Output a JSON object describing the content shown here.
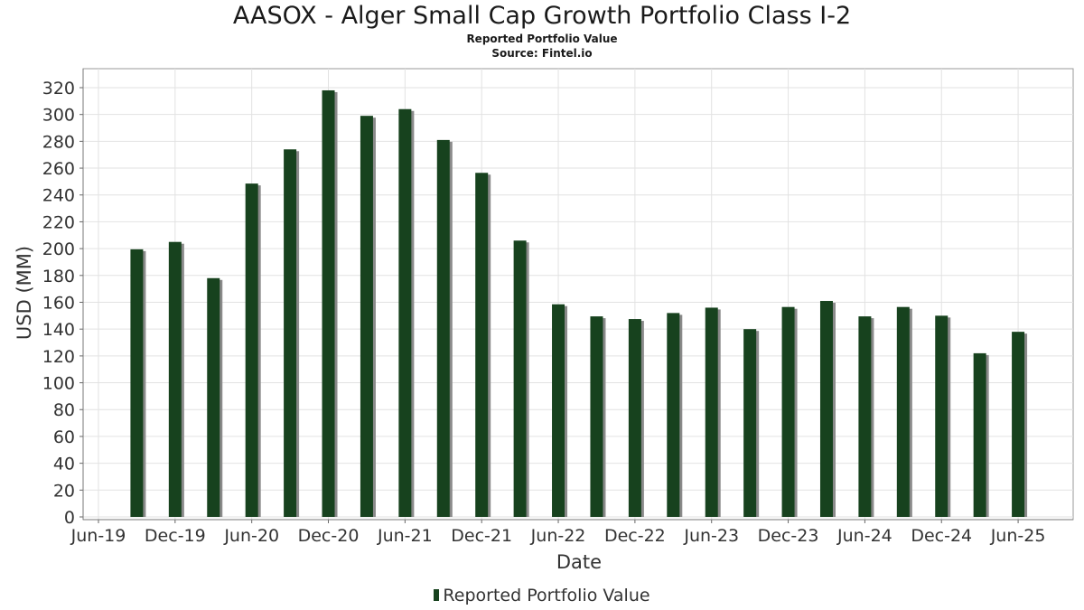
{
  "chart_data": {
    "type": "bar",
    "title": "AASOX - Alger Small Cap Growth Portfolio Class I-2",
    "subtitle": "Reported Portfolio Value",
    "source": "Source: Fintel.io",
    "xlabel": "Date",
    "ylabel": "USD (MM)",
    "ylim": [
      0,
      330
    ],
    "yticks": [
      0,
      20,
      40,
      60,
      80,
      100,
      120,
      140,
      160,
      180,
      200,
      220,
      240,
      260,
      280,
      300,
      320
    ],
    "xticks": [
      "Jun-19",
      "Dec-19",
      "Jun-20",
      "Dec-20",
      "Jun-21",
      "Dec-21",
      "Jun-22",
      "Dec-22",
      "Jun-23",
      "Dec-23",
      "Jun-24",
      "Dec-24",
      "Jun-25"
    ],
    "grid": true,
    "legend_position": "bottom",
    "bar_color": "#17421e",
    "series": [
      {
        "name": "Reported Portfolio Value",
        "x": [
          "2019-09-30",
          "2019-12-31",
          "2020-03-31",
          "2020-06-30",
          "2020-09-30",
          "2020-12-31",
          "2021-03-31",
          "2021-06-30",
          "2021-09-30",
          "2021-12-31",
          "2022-03-31",
          "2022-06-30",
          "2022-09-30",
          "2022-12-31",
          "2023-03-31",
          "2023-06-30",
          "2023-09-30",
          "2023-12-31",
          "2024-03-31",
          "2024-06-30",
          "2024-09-30",
          "2024-12-31",
          "2025-03-31",
          "2025-06-30"
        ],
        "values": [
          199.5,
          205,
          178,
          248.5,
          274,
          318,
          299,
          304,
          281,
          256.5,
          206,
          158.5,
          149.5,
          147.5,
          152,
          156,
          140,
          156.5,
          161,
          149.5,
          156.5,
          150,
          122,
          138
        ]
      }
    ]
  }
}
